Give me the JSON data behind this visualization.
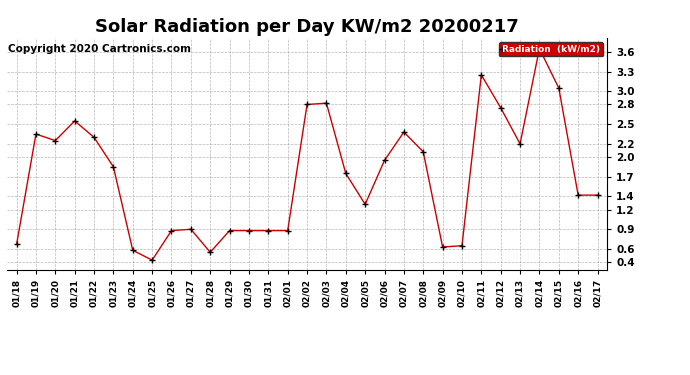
{
  "title": "Solar Radiation per Day KW/m2 20200217",
  "copyright": "Copyright 2020 Cartronics.com",
  "legend_label": "Radiation  (kW/m2)",
  "dates": [
    "01/18",
    "01/19",
    "01/20",
    "01/21",
    "01/22",
    "01/23",
    "01/24",
    "01/25",
    "01/26",
    "01/27",
    "01/28",
    "01/29",
    "01/30",
    "01/31",
    "02/01",
    "02/02",
    "02/03",
    "02/04",
    "02/05",
    "02/06",
    "02/07",
    "02/08",
    "02/09",
    "02/10",
    "02/11",
    "02/12",
    "02/13",
    "02/14",
    "02/15",
    "02/16",
    "02/17"
  ],
  "values": [
    0.67,
    2.35,
    2.25,
    2.55,
    2.3,
    1.85,
    0.58,
    0.43,
    0.88,
    0.9,
    0.55,
    0.88,
    0.88,
    0.88,
    0.88,
    2.8,
    2.82,
    1.75,
    1.28,
    1.95,
    2.38,
    2.08,
    0.63,
    0.65,
    3.25,
    2.75,
    2.2,
    3.65,
    3.05,
    1.42,
    1.42
  ],
  "line_color": "#cc0000",
  "marker_color": "#000000",
  "background_color": "#ffffff",
  "plot_bg_color": "#ffffff",
  "grid_color": "#999999",
  "ylim": [
    0.28,
    3.82
  ],
  "yticks": [
    0.4,
    0.6,
    0.9,
    1.2,
    1.4,
    1.7,
    2.0,
    2.2,
    2.5,
    2.8,
    3.0,
    3.3,
    3.6
  ],
  "legend_bg": "#cc0000",
  "legend_text_color": "#ffffff",
  "title_fontsize": 13,
  "copyright_fontsize": 7.5
}
